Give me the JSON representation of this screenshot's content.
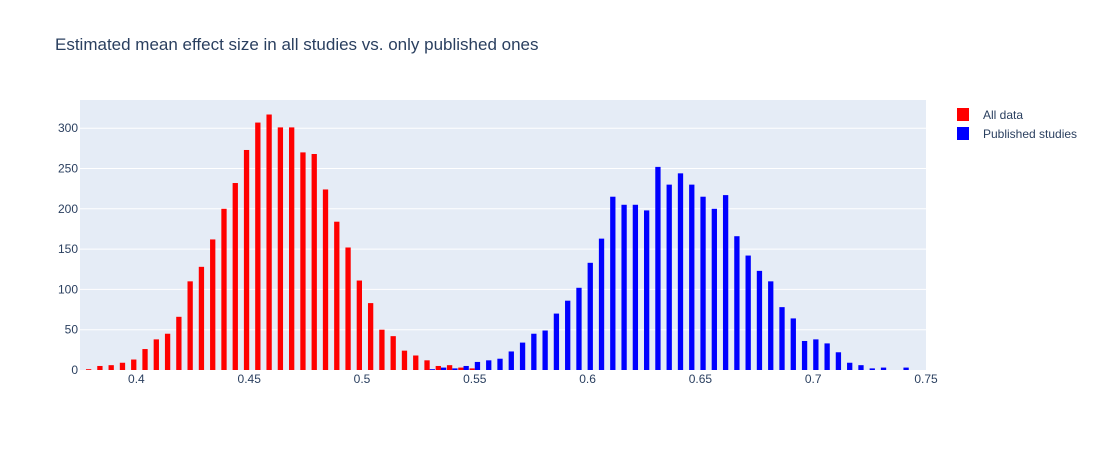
{
  "chart_data": {
    "type": "bar",
    "title": "Estimated mean effect size in all studies vs. only published ones",
    "xlabel": "",
    "ylabel": "",
    "xlim": [
      0.375,
      0.75
    ],
    "ylim": [
      0,
      335
    ],
    "xticks": [
      0.4,
      0.45,
      0.5,
      0.55,
      0.6,
      0.65,
      0.7,
      0.75
    ],
    "xtick_labels": [
      "0.4",
      "0.45",
      "0.5",
      "0.55",
      "0.6",
      "0.65",
      "0.7",
      "0.75"
    ],
    "yticks": [
      0,
      50,
      100,
      150,
      200,
      250,
      300
    ],
    "ytick_labels": [
      "0",
      "50",
      "100",
      "150",
      "200",
      "250",
      "300"
    ],
    "legend_position": "top-right",
    "grid": true,
    "series": [
      {
        "name": "All data",
        "color": "#ff0000",
        "x": [
          0.375,
          0.38,
          0.385,
          0.39,
          0.395,
          0.4,
          0.405,
          0.41,
          0.415,
          0.42,
          0.425,
          0.43,
          0.435,
          0.44,
          0.445,
          0.45,
          0.455,
          0.46,
          0.465,
          0.47,
          0.475,
          0.48,
          0.485,
          0.49,
          0.495,
          0.5,
          0.505,
          0.51,
          0.515,
          0.52,
          0.525,
          0.53,
          0.535,
          0.54,
          0.545,
          0.55
        ],
        "values": [
          1,
          1,
          5,
          6,
          9,
          13,
          26,
          38,
          45,
          66,
          110,
          128,
          162,
          200,
          232,
          273,
          307,
          317,
          301,
          301,
          270,
          268,
          224,
          184,
          152,
          111,
          83,
          50,
          42,
          24,
          18,
          12,
          5,
          6,
          3,
          2
        ]
      },
      {
        "name": "Published studies",
        "color": "#0000ff",
        "x": [
          0.53,
          0.535,
          0.54,
          0.545,
          0.55,
          0.555,
          0.56,
          0.565,
          0.57,
          0.575,
          0.58,
          0.585,
          0.59,
          0.595,
          0.6,
          0.605,
          0.61,
          0.615,
          0.62,
          0.625,
          0.63,
          0.635,
          0.64,
          0.645,
          0.65,
          0.655,
          0.66,
          0.665,
          0.67,
          0.675,
          0.68,
          0.685,
          0.69,
          0.695,
          0.7,
          0.705,
          0.71,
          0.715,
          0.72,
          0.725,
          0.73,
          0.74,
          0.75
        ],
        "values": [
          1,
          3,
          2,
          5,
          10,
          12,
          14,
          23,
          34,
          45,
          49,
          70,
          86,
          102,
          133,
          163,
          215,
          205,
          205,
          198,
          252,
          230,
          244,
          230,
          215,
          200,
          217,
          166,
          142,
          123,
          110,
          78,
          64,
          36,
          38,
          33,
          22,
          9,
          6,
          2,
          3,
          3,
          1
        ]
      }
    ]
  }
}
